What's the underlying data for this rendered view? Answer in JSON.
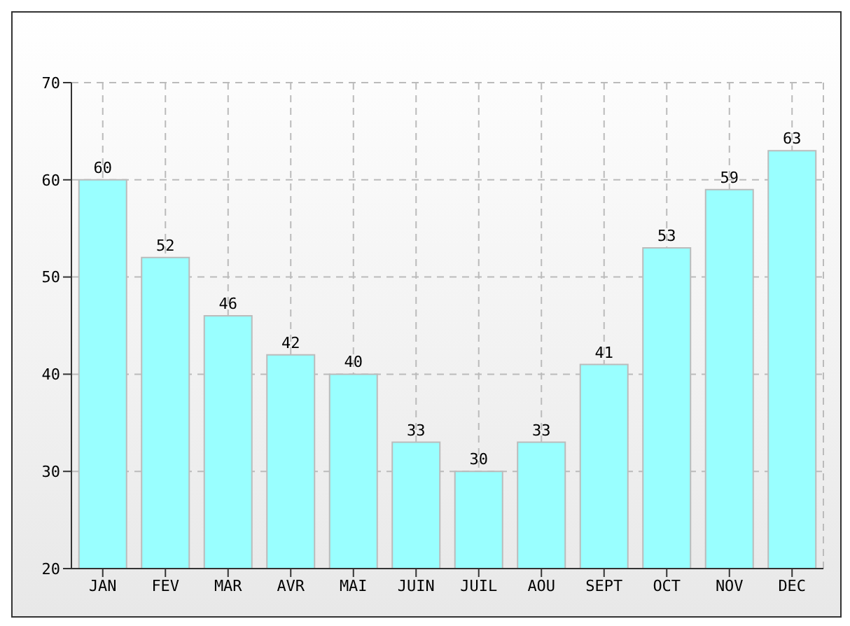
{
  "chart_data": {
    "type": "bar",
    "categories": [
      "JAN",
      "FEV",
      "MAR",
      "AVR",
      "MAI",
      "JUIN",
      "JUIL",
      "AOU",
      "SEPT",
      "OCT",
      "NOV",
      "DEC"
    ],
    "values": [
      60,
      52,
      46,
      42,
      40,
      33,
      30,
      33,
      41,
      53,
      59,
      63
    ],
    "color": "#99ffff",
    "ylim": [
      20,
      70
    ],
    "yticks": [
      20,
      30,
      40,
      50,
      60,
      70
    ],
    "grid": true,
    "data_labels": true
  }
}
